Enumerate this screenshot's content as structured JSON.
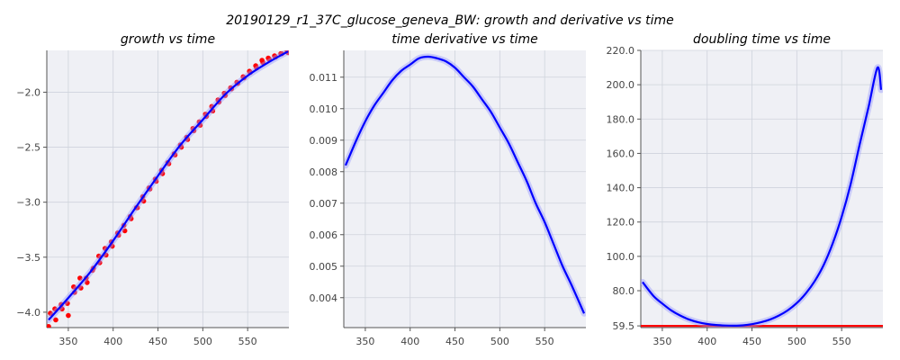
{
  "figure": {
    "suptitle": "20190129_r1_37C_glucose_geneva_BW: growth and derivative vs time"
  },
  "chart_data": [
    {
      "type": "scatter",
      "title": "growth vs time",
      "xlabel": "",
      "ylabel": "",
      "xlim": [
        326,
        596
      ],
      "ylim": [
        -4.14,
        -1.62
      ],
      "xticks": [
        350,
        400,
        450,
        500,
        550
      ],
      "xtick_labels": [
        "350",
        "400",
        "450",
        "500",
        "550"
      ],
      "yticks": [
        -4.0,
        -3.5,
        -3.0,
        -2.5,
        -2.0
      ],
      "ytick_labels": [
        "−4.0",
        "−3.5",
        "−3.0",
        "−2.5",
        "−2.0"
      ],
      "grid": true,
      "colors": {
        "points": "#ff0000",
        "fit": "#0000ff",
        "band": "#9999ff"
      },
      "series": [
        {
          "kind": "points",
          "x": [
            328,
            330,
            335,
            336,
            342,
            343,
            349,
            350,
            356,
            357,
            363,
            364,
            370,
            371,
            377,
            378,
            384,
            385,
            391,
            392,
            398,
            399,
            405,
            406,
            412,
            413,
            419,
            420,
            426,
            427,
            433,
            434,
            440,
            441,
            447,
            448,
            454,
            455,
            461,
            462,
            468,
            469,
            475,
            476,
            482,
            483,
            489,
            490,
            496,
            497,
            503,
            504,
            510,
            511,
            517,
            518,
            524,
            525,
            531,
            532,
            538,
            539,
            545,
            546,
            552,
            553,
            559,
            560,
            566,
            567,
            573,
            574,
            580,
            581,
            587,
            588,
            594,
            595
          ],
          "y": [
            -4.13,
            -4.01,
            -3.97,
            -4.07,
            -3.93,
            -3.97,
            -3.92,
            -4.03,
            -3.77,
            -3.82,
            -3.69,
            -3.78,
            -3.69,
            -3.73,
            -3.62,
            -3.6,
            -3.49,
            -3.55,
            -3.42,
            -3.48,
            -3.36,
            -3.4,
            -3.28,
            -3.3,
            -3.21,
            -3.26,
            -3.13,
            -3.15,
            -3.05,
            -3.05,
            -2.95,
            -2.99,
            -2.87,
            -2.88,
            -2.79,
            -2.81,
            -2.71,
            -2.74,
            -2.64,
            -2.65,
            -2.56,
            -2.57,
            -2.48,
            -2.5,
            -2.41,
            -2.43,
            -2.33,
            -2.35,
            -2.27,
            -2.3,
            -2.2,
            -2.22,
            -2.13,
            -2.17,
            -2.07,
            -2.09,
            -2.01,
            -2.03,
            -1.96,
            -1.97,
            -1.91,
            -1.92,
            -1.86,
            -1.87,
            -1.81,
            -1.82,
            -1.76,
            -1.78,
            -1.71,
            -1.73,
            -1.69,
            -1.7,
            -1.67,
            -1.68,
            -1.65,
            -1.65,
            -1.63,
            -1.64
          ]
        },
        {
          "kind": "line",
          "x": [
            328,
            350,
            375,
            400,
            425,
            450,
            475,
            500,
            525,
            550,
            575,
            595
          ],
          "y": [
            -4.07,
            -3.87,
            -3.63,
            -3.35,
            -3.05,
            -2.76,
            -2.48,
            -2.25,
            -2.02,
            -1.85,
            -1.72,
            -1.63
          ]
        }
      ]
    },
    {
      "type": "line",
      "title": "time derivative vs time",
      "xlabel": "",
      "ylabel": "",
      "xlim": [
        326,
        596
      ],
      "ylim": [
        0.00305,
        0.01185
      ],
      "xticks": [
        350,
        400,
        450,
        500,
        550
      ],
      "xtick_labels": [
        "350",
        "400",
        "450",
        "500",
        "550"
      ],
      "yticks": [
        0.004,
        0.005,
        0.006,
        0.007,
        0.008,
        0.009,
        0.01,
        0.011
      ],
      "ytick_labels": [
        "0.004",
        "0.005",
        "0.006",
        "0.007",
        "0.008",
        "0.009",
        "0.010",
        "0.011"
      ],
      "grid": true,
      "colors": {
        "fit": "#0000ff",
        "band": "#9999ff"
      },
      "series": [
        {
          "kind": "line",
          "x": [
            328,
            340,
            350,
            360,
            370,
            380,
            390,
            400,
            410,
            420,
            430,
            440,
            450,
            460,
            470,
            480,
            490,
            500,
            510,
            520,
            530,
            540,
            550,
            560,
            570,
            580,
            594
          ],
          "y": [
            0.0082,
            0.009,
            0.0096,
            0.0101,
            0.0105,
            0.0109,
            0.0112,
            0.0114,
            0.0116,
            0.01165,
            0.0116,
            0.0115,
            0.0113,
            0.011,
            0.0107,
            0.0103,
            0.0099,
            0.0094,
            0.0089,
            0.0083,
            0.0077,
            0.007,
            0.0064,
            0.0057,
            0.005,
            0.0044,
            0.0035
          ]
        }
      ]
    },
    {
      "type": "line",
      "title": "doubling time vs time",
      "xlabel": "",
      "ylabel": "",
      "xlim": [
        326,
        596
      ],
      "ylim": [
        58.5,
        220.0
      ],
      "xticks": [
        350,
        400,
        450,
        500,
        550
      ],
      "xtick_labels": [
        "350",
        "400",
        "450",
        "500",
        "550"
      ],
      "yticks": [
        59.5,
        80.0,
        100.0,
        120.0,
        140.0,
        160.0,
        180.0,
        200.0,
        220.0
      ],
      "ytick_labels": [
        "59.5",
        "80.0",
        "100.0",
        "120.0",
        "140.0",
        "160.0",
        "180.0",
        "200.0",
        "220.0"
      ],
      "grid": true,
      "colors": {
        "fit": "#0000ff",
        "band": "#9999ff",
        "hline": "#ff0000"
      },
      "hline": 59.5,
      "series": [
        {
          "kind": "line",
          "x": [
            328,
            340,
            350,
            360,
            370,
            380,
            390,
            400,
            410,
            420,
            430,
            440,
            450,
            460,
            470,
            480,
            490,
            500,
            510,
            520,
            530,
            540,
            550,
            560,
            570,
            580,
            590,
            594
          ],
          "y": [
            85.0,
            77.0,
            72.5,
            68.5,
            65.5,
            63.2,
            61.6,
            60.6,
            60.0,
            59.7,
            59.6,
            59.8,
            60.5,
            61.6,
            63.2,
            65.5,
            68.6,
            72.8,
            78.4,
            85.6,
            95.0,
            107.5,
            123.0,
            142.0,
            165.0,
            187.0,
            210.0,
            197.0
          ]
        }
      ]
    }
  ]
}
